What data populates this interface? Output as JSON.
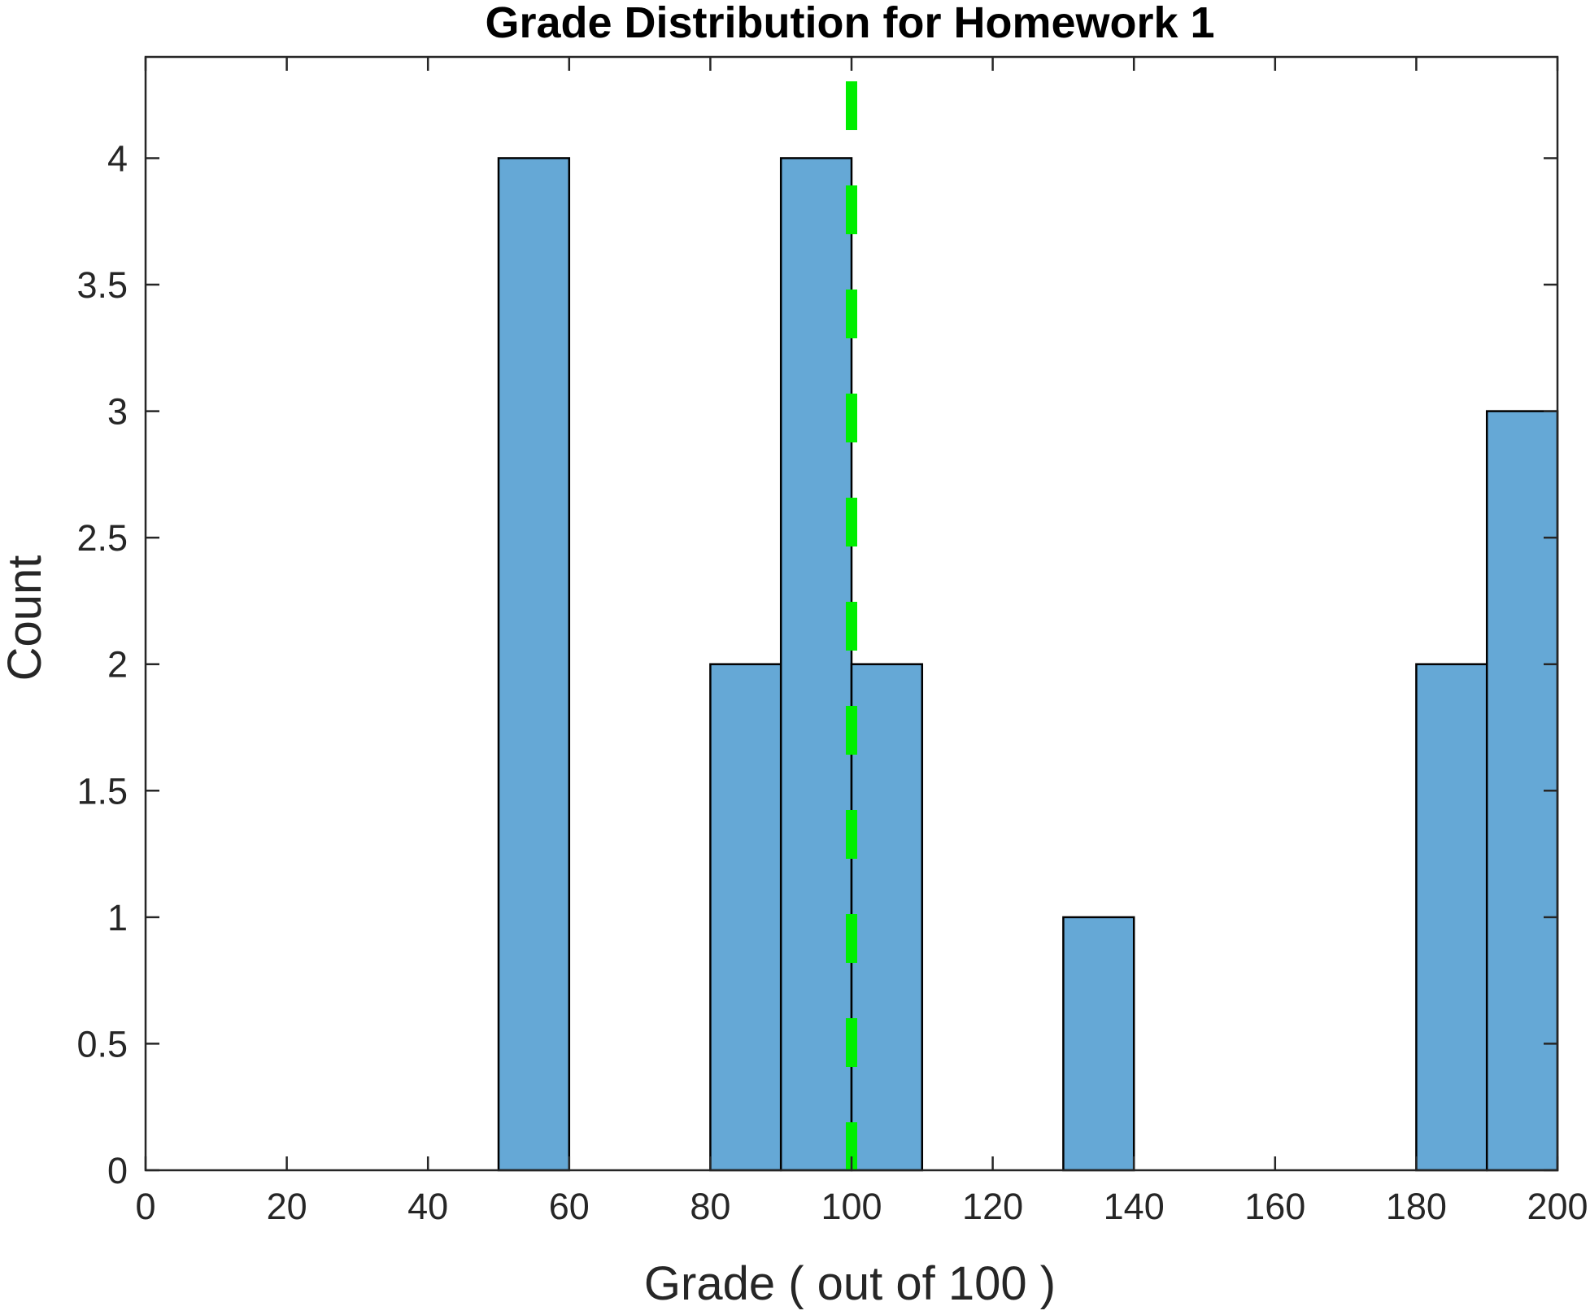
{
  "chart_data": {
    "type": "bar",
    "title": "Grade Distribution for Homework 1",
    "xlabel": "Grade ( out of 100 )",
    "ylabel": "Count",
    "xlim": [
      0,
      200
    ],
    "ylim": [
      0,
      4.4
    ],
    "x_ticks": [
      0,
      20,
      40,
      60,
      80,
      100,
      120,
      140,
      160,
      180,
      200
    ],
    "x_tick_labels": [
      "0",
      "20",
      "40",
      "60",
      "80",
      "100",
      "120",
      "140",
      "160",
      "180",
      "200"
    ],
    "y_ticks": [
      0,
      0.5,
      1,
      1.5,
      2,
      2.5,
      3,
      3.5,
      4
    ],
    "y_tick_labels": [
      "0",
      "0.5",
      "1",
      "1.5",
      "2",
      "2.5",
      "3",
      "3.5",
      "4"
    ],
    "bins": [
      {
        "x_start": 50,
        "x_end": 60,
        "count": 4
      },
      {
        "x_start": 80,
        "x_end": 90,
        "count": 2
      },
      {
        "x_start": 90,
        "x_end": 100,
        "count": 4
      },
      {
        "x_start": 100,
        "x_end": 110,
        "count": 2
      },
      {
        "x_start": 130,
        "x_end": 140,
        "count": 1
      },
      {
        "x_start": 180,
        "x_end": 190,
        "count": 2
      },
      {
        "x_start": 190,
        "x_end": 200,
        "count": 3
      }
    ],
    "reference_line": {
      "x": 100,
      "style": "dashed"
    },
    "grid": false,
    "colors": {
      "bar_fill": "#65a8d6",
      "bar_edge": "#000000",
      "reference_line": "#00ee00",
      "axes": "#262626"
    }
  }
}
